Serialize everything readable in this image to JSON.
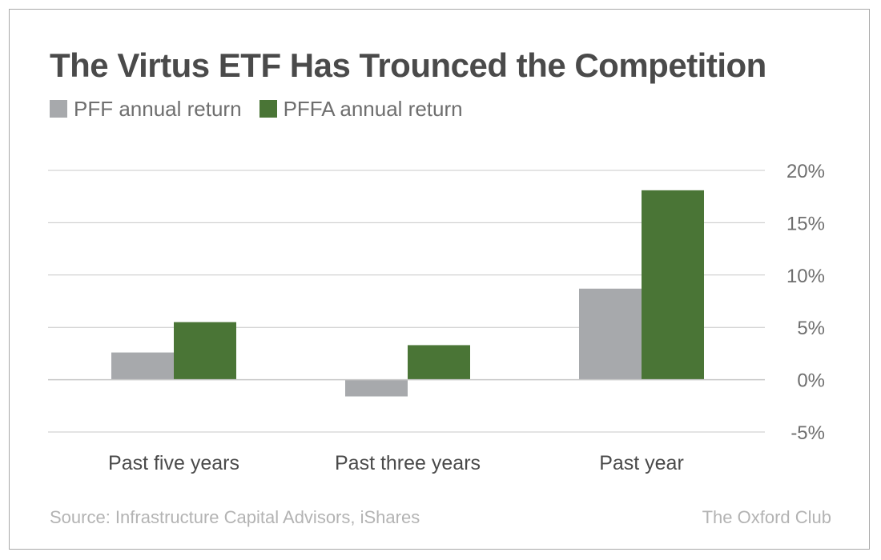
{
  "chart_data": {
    "type": "bar",
    "title": "The Virtus ETF Has Trounced the Competition",
    "categories": [
      "Past five years",
      "Past three years",
      "Past year"
    ],
    "series": [
      {
        "name": "PFF annual return",
        "values": [
          2.6,
          -1.6,
          8.7
        ],
        "color": "#a7a9ac"
      },
      {
        "name": "PFFA annual return",
        "values": [
          5.5,
          3.3,
          18.1
        ],
        "color": "#4a7536"
      }
    ],
    "ylim": [
      -5,
      20
    ],
    "yticks": [
      -5,
      0,
      5,
      10,
      15,
      20
    ],
    "ytick_labels": [
      "-5%",
      "0%",
      "5%",
      "10%",
      "15%",
      "20%"
    ],
    "grid": true,
    "legend": "top-left",
    "y_axis_side": "right"
  },
  "footer": {
    "source": "Source: Infrastructure Capital Advisors, iShares",
    "brand": "The Oxford Club"
  },
  "colors": {
    "gridline": "#c8c8c8",
    "title": "#4a4a4a",
    "footer": "#b3b3b3"
  }
}
